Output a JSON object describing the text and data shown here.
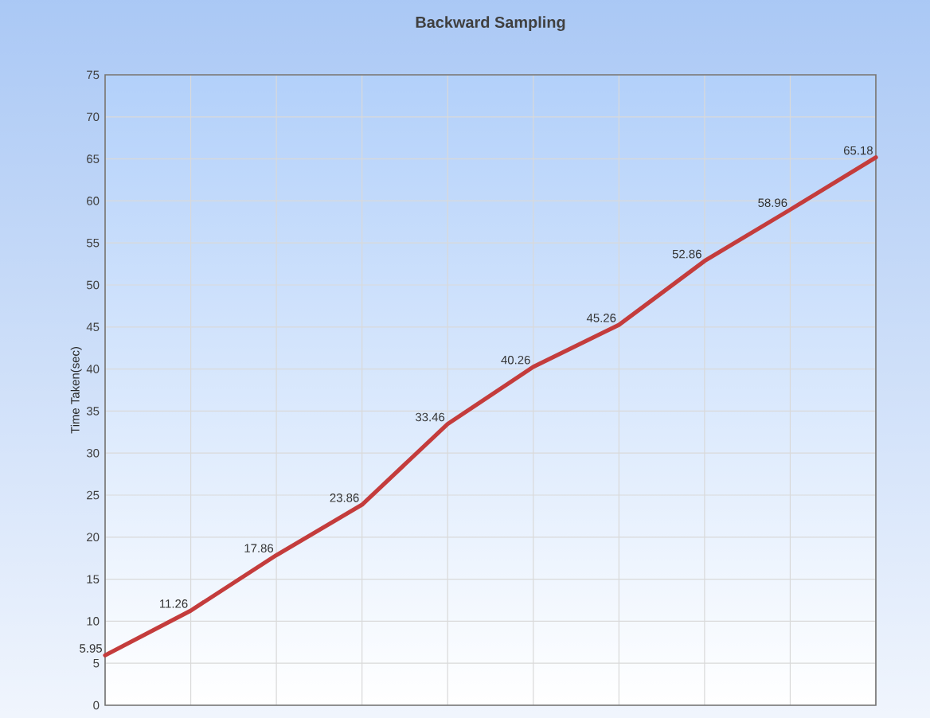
{
  "chart_data": {
    "type": "line",
    "title": "Backward Sampling",
    "ylabel": "Time Taken(sec)",
    "categories": [
      null,
      null,
      null,
      null,
      null,
      null,
      null,
      null,
      null,
      null
    ],
    "values": [
      5.95,
      11.26,
      17.86,
      23.86,
      33.46,
      40.26,
      45.26,
      52.86,
      58.96,
      65.18
    ],
    "color": "#c43c3c",
    "ylim": [
      0,
      75
    ],
    "yticks": [
      0,
      5,
      10,
      15,
      20,
      25,
      30,
      35,
      40,
      45,
      50,
      55,
      60,
      65,
      70,
      75
    ],
    "grid": true,
    "data_labels": true,
    "tick_labels": "y",
    "marker": "none",
    "line_style": "solid"
  }
}
